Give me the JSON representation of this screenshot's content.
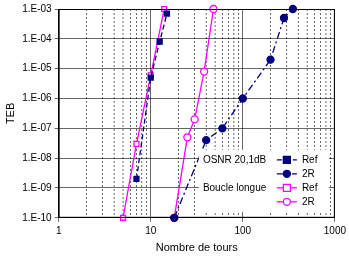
{
  "chart_data": {
    "type": "line",
    "x_label": "Nombre de tours",
    "y_label": "TEB",
    "log": true,
    "grid": true,
    "legend": "lower right",
    "annotations": [
      "OSNR 20,1dB",
      "Boucle longue"
    ],
    "xlim": [
      1,
      1000
    ],
    "xticks": [
      1,
      10,
      100,
      1000
    ],
    "ylim": [
      1e-10,
      0.001
    ],
    "yticks": [
      {
        "value": 1e-10,
        "label": "1.E-10"
      },
      {
        "value": 1e-09,
        "label": "1.E-09"
      },
      {
        "value": 1e-08,
        "label": "1.E-08"
      },
      {
        "value": 1e-07,
        "label": "1.E-07"
      },
      {
        "value": 1e-06,
        "label": "1.E-06"
      },
      {
        "value": 1e-05,
        "label": "1.E-05"
      },
      {
        "value": 0.0001,
        "label": "1.E-04"
      },
      {
        "value": 0.001,
        "label": "1.E-03"
      }
    ],
    "series": [
      {
        "name": "Ref",
        "color": "#000080",
        "marker": "square",
        "line_style": "dashed",
        "x": [
          7,
          10,
          12.5,
          15
        ],
        "values": [
          2e-09,
          5e-06,
          8e-05,
          0.0007
        ]
      },
      {
        "name": "2R",
        "color": "#000080",
        "marker": "circle",
        "line_style": "dashdot",
        "x": [
          18,
          40,
          60,
          100,
          200,
          280,
          350
        ],
        "values": [
          1e-10,
          4e-08,
          1e-07,
          1e-06,
          2e-05,
          0.0005,
          0.001
        ]
      },
      {
        "name": "Ref",
        "color": "#ff00ff",
        "marker": "open_square",
        "line_style": "solid",
        "x": [
          5,
          7,
          10,
          14
        ],
        "values": [
          1e-10,
          3e-08,
          6e-06,
          0.001
        ]
      },
      {
        "name": "2R",
        "color": "#ff00ff",
        "marker": "open_circle",
        "line_style": "solid",
        "x": [
          18,
          25,
          30,
          38,
          48
        ],
        "values": [
          1e-10,
          5e-08,
          2e-07,
          8e-06,
          0.001
        ]
      }
    ]
  }
}
